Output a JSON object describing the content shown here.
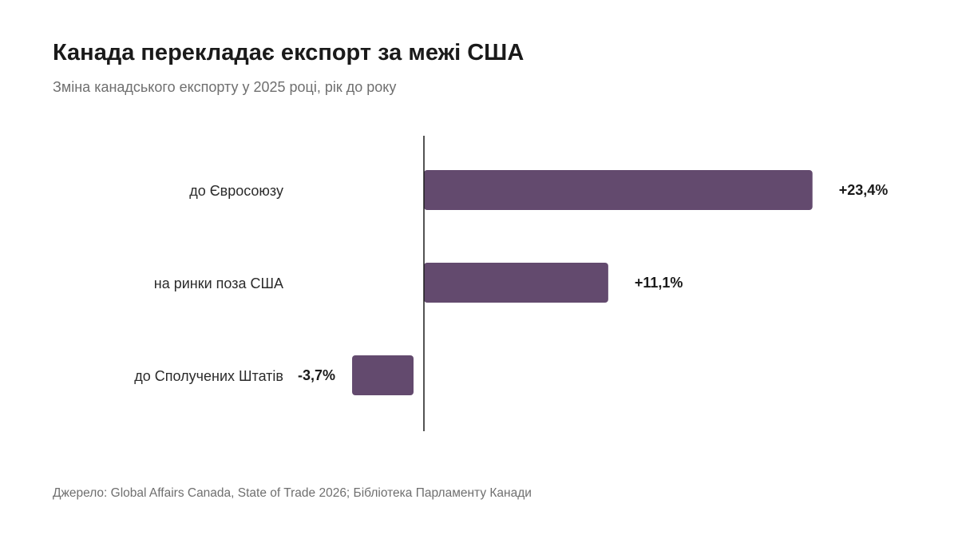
{
  "header": {
    "title": "Канада перекладає експорт за межі США",
    "subtitle": "Зміна канадського експорту у 2025 році, рік до року"
  },
  "footer": {
    "source": "Джерело: Global Affairs Canada, State of Trade 2026; Бібліотека Парламенту Канади"
  },
  "chart_data": {
    "type": "bar",
    "orientation": "horizontal",
    "title": "Канада перекладає експорт за межі США",
    "subtitle": "Зміна канадського експорту у 2025 році, рік до року",
    "categories": [
      "до Євросоюзу",
      "на ринки поза США",
      "до Сполучених Штатів"
    ],
    "values": [
      23.4,
      11.1,
      -3.7
    ],
    "value_labels": [
      "+23,4%",
      "+11,1%",
      "-3,7%"
    ],
    "xlabel": "",
    "ylabel": "",
    "grid": false,
    "legend": "none",
    "bar_color": "#634a6e",
    "axis_color": "#1a1a1a"
  }
}
